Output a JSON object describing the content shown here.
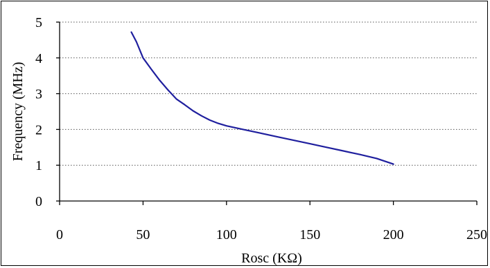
{
  "chart_data": {
    "type": "line",
    "title": "",
    "xlabel": "Rosc (KΩ)",
    "ylabel": "Frequency (MHz)",
    "xlim": [
      0,
      250
    ],
    "ylim": [
      0,
      5
    ],
    "x_ticks": [
      "0",
      "50",
      "100",
      "150",
      "200",
      "250"
    ],
    "y_ticks": [
      "0",
      "1",
      "2",
      "3",
      "4",
      "5"
    ],
    "grid": "horizontal dotted",
    "legend": "none",
    "series": [
      {
        "color": "#1f1f9e",
        "points": [
          [
            43,
            4.72
          ],
          [
            46,
            4.45
          ],
          [
            50,
            4.0
          ],
          [
            55,
            3.68
          ],
          [
            60,
            3.37
          ],
          [
            65,
            3.1
          ],
          [
            70,
            2.85
          ],
          [
            75,
            2.69
          ],
          [
            80,
            2.52
          ],
          [
            85,
            2.38
          ],
          [
            90,
            2.26
          ],
          [
            95,
            2.17
          ],
          [
            100,
            2.1
          ],
          [
            110,
            2.0
          ],
          [
            120,
            1.9
          ],
          [
            130,
            1.8
          ],
          [
            140,
            1.7
          ],
          [
            150,
            1.6
          ],
          [
            160,
            1.5
          ],
          [
            170,
            1.4
          ],
          [
            180,
            1.3
          ],
          [
            190,
            1.19
          ],
          [
            200,
            1.03
          ]
        ]
      }
    ]
  }
}
